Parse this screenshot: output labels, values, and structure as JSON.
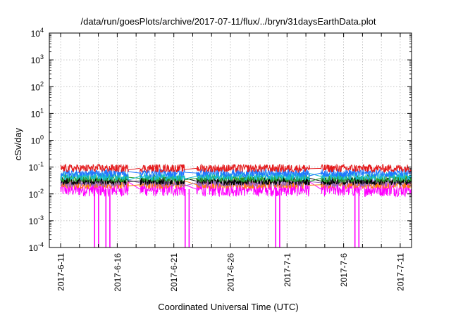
{
  "chart_data": {
    "type": "line",
    "title": "/data/run/goesPlots/archive/2017-07-11/flux/../bryn/31daysEarthData.plot",
    "xlabel": "Coordinated Universal Time (UTC)",
    "ylabel": "cSv/day",
    "yscale": "log",
    "ylim": [
      0.0001,
      10000
    ],
    "xlim": [
      "2017-06-10",
      "2017-07-12"
    ],
    "grid": true,
    "y_ticks": [
      {
        "base": "10",
        "exp": "-4"
      },
      {
        "base": "10",
        "exp": "-3"
      },
      {
        "base": "10",
        "exp": "-2"
      },
      {
        "base": "10",
        "exp": "-1"
      },
      {
        "base": "10",
        "exp": "0"
      },
      {
        "base": "10",
        "exp": "1"
      },
      {
        "base": "10",
        "exp": "2"
      },
      {
        "base": "10",
        "exp": "3"
      },
      {
        "base": "10",
        "exp": "4"
      }
    ],
    "x_ticks": [
      "2017-6-11",
      "2017-6-16",
      "2017-6-21",
      "2017-6-26",
      "2017-7-1",
      "2017-7-6",
      "2017-7-11"
    ],
    "data_segments": [
      [
        "2017-06-11",
        "2017-06-17"
      ],
      [
        "2017-06-18",
        "2017-06-22"
      ],
      [
        "2017-06-23",
        "2017-07-03"
      ],
      [
        "2017-07-04",
        "2017-07-12"
      ]
    ],
    "series": [
      {
        "color": "#e41a1c",
        "typical": 0.09
      },
      {
        "color": "#1f77ff",
        "typical": 0.06
      },
      {
        "color": "#17becf",
        "typical": 0.045
      },
      {
        "color": "#2ca02c",
        "typical": 0.038
      },
      {
        "color": "#000000",
        "typical": 0.03
      },
      {
        "color": "#9467bd",
        "typical": 0.026
      },
      {
        "color": "#ff7f0e",
        "typical": 0.022
      },
      {
        "color": "#ff00ff",
        "typical": 0.015
      }
    ],
    "dropouts": [
      "2017-06-14",
      "2017-06-15",
      "2017-06-22",
      "2017-06-30",
      "2017-07-07"
    ]
  }
}
